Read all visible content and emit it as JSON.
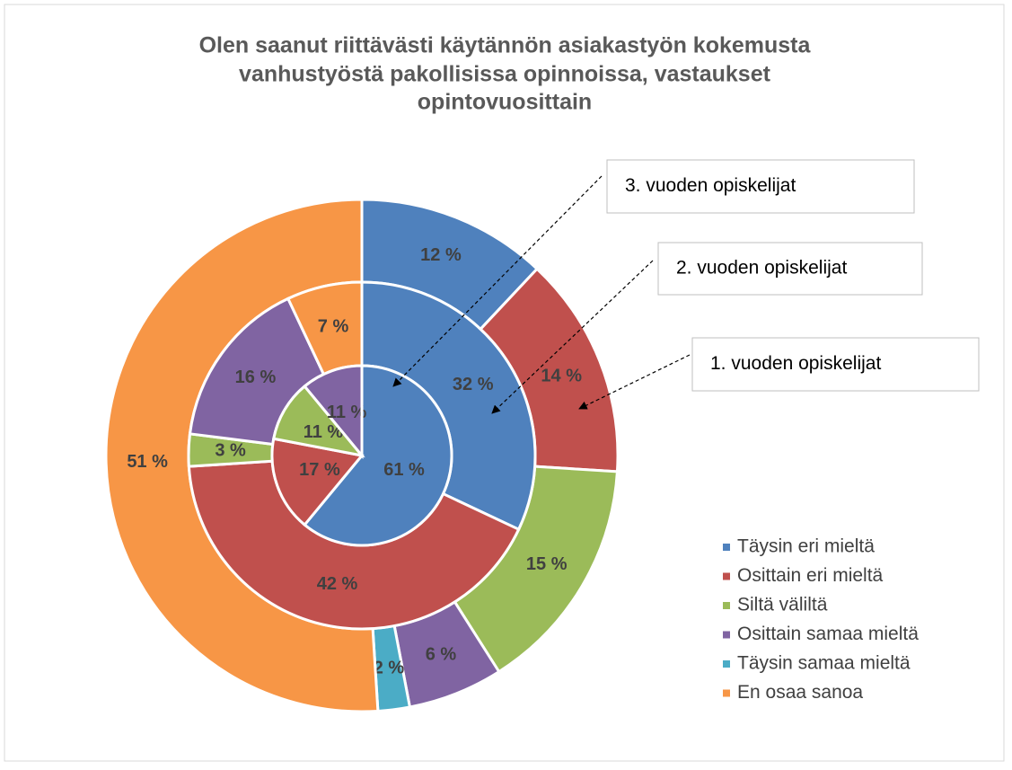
{
  "chart_data": {
    "type": "donut",
    "title": [
      "Olen saanut riittävästi käytännön asiakastyön kokemusta",
      "vanhustyöstä pakollisissa opinnoissa, vastaukset",
      "opintovuosittain"
    ],
    "categories": [
      "Täysin eri mieltä",
      "Osittain eri mieltä",
      "Siltä väliltä",
      "Osittain samaa mieltä",
      "Täysin samaa mieltä",
      "En osaa sanoa"
    ],
    "colors": [
      "#4f81bd",
      "#c0504d",
      "#9bbb59",
      "#8064a2",
      "#4bacc6",
      "#f79646"
    ],
    "legend": "right",
    "series": [
      {
        "name": "1. vuoden opiskelijat",
        "values": [
          12,
          14,
          15,
          6,
          2,
          51
        ],
        "value_labels": [
          "12 %",
          "14 %",
          "15 %",
          "6 %",
          "2 %",
          "51 %"
        ]
      },
      {
        "name": "2. vuoden opiskelijat",
        "values": [
          32,
          42,
          3,
          16,
          0,
          7
        ],
        "value_labels": [
          "32 %",
          "42 %",
          "3 %",
          "16 %",
          null,
          "7 %"
        ]
      },
      {
        "name": "3. vuoden opiskelijat",
        "values": [
          61,
          17,
          11,
          11,
          0,
          0
        ],
        "value_labels": [
          "61 %",
          "17 %",
          "11 %",
          "11 %",
          null,
          null
        ]
      }
    ]
  }
}
